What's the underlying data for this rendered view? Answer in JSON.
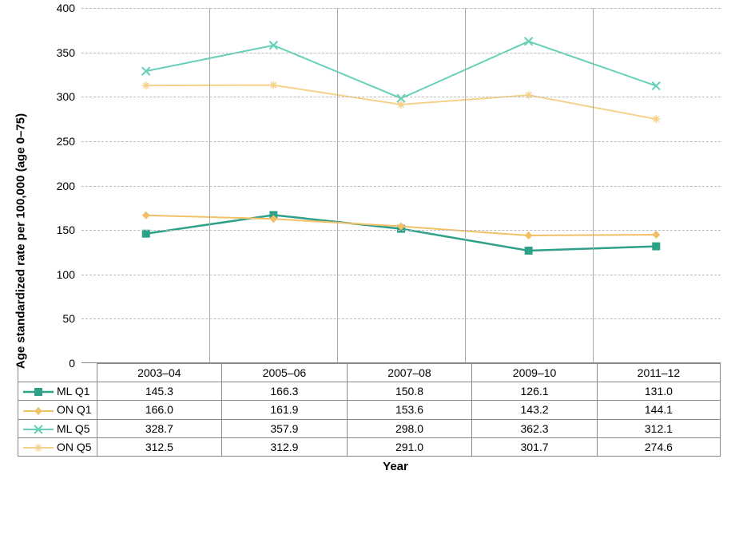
{
  "chart": {
    "type": "line",
    "ylabel": "Age standardized rate per 100,000 (age 0–75)",
    "xlabel": "Year",
    "ylim": [
      0,
      400
    ],
    "ytick_step": 50,
    "yticks": [
      0,
      50,
      100,
      150,
      200,
      250,
      300,
      350,
      400
    ],
    "categories": [
      "2003–04",
      "2005–06",
      "2007–08",
      "2009–10",
      "2011–12"
    ],
    "grid_color": "#bbbbbb",
    "background_color": "#ffffff",
    "axis_color": "#888888",
    "label_fontsize": 15,
    "tick_fontsize": 14,
    "series": [
      {
        "name": "ML Q1",
        "color": "#2ca089",
        "marker": "square-filled",
        "line_width": 2.5,
        "values": [
          145.3,
          166.3,
          150.8,
          126.1,
          131.0
        ]
      },
      {
        "name": "ON Q1",
        "color": "#f2c166",
        "marker": "diamond-filled",
        "line_width": 2,
        "values": [
          166.0,
          161.9,
          153.6,
          143.2,
          144.1
        ]
      },
      {
        "name": "ML Q5",
        "color": "#64d0b8",
        "marker": "x",
        "line_width": 2,
        "values": [
          328.7,
          357.9,
          298.0,
          362.3,
          312.1
        ]
      },
      {
        "name": "ON Q5",
        "color": "#f5d28c",
        "marker": "asterisk",
        "line_width": 2,
        "values": [
          312.5,
          312.9,
          291.0,
          301.7,
          274.6
        ]
      }
    ]
  }
}
